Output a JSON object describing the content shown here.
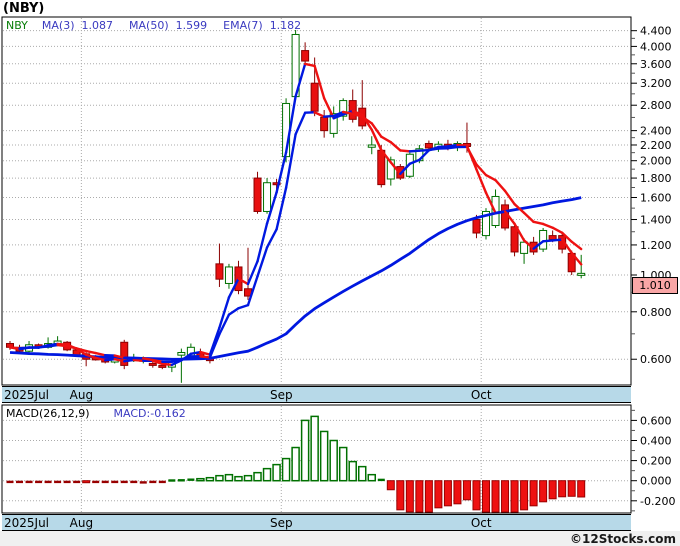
{
  "title": "(NBY)",
  "legend": {
    "symbol": "NBY",
    "items": [
      {
        "label": "MA(3)",
        "value": "1.087"
      },
      {
        "label": "MA(50)",
        "value": "1.599"
      },
      {
        "label": "EMA(7)",
        "value": "1.182"
      }
    ]
  },
  "macd_legend": {
    "label": "MACD(26,12,9)",
    "value": "MACD:-0.162"
  },
  "price_tag": "1.010",
  "footer": "©12Stocks.com",
  "colors": {
    "up": "#007000",
    "down": "#e81010",
    "down_dark": "#8b0000",
    "ma_blue": "#0018e0",
    "ma_red": "#ee1111",
    "ma50_blue": "#0018e0",
    "macd_neg_fill": "#ee1111",
    "macd_neg_stroke": "#990000",
    "grid": "#ababab",
    "band": "#b7d9e8",
    "price_tag_bg": "#f9a6a6"
  },
  "chart_data": {
    "type": "candlestick+macd",
    "symbol": "NBY",
    "scale": "log",
    "title": "(NBY)",
    "price_axis": {
      "majors": [
        4.4,
        4.0,
        3.6,
        3.2,
        2.8,
        2.4,
        2.2,
        2.0,
        1.8,
        1.6,
        1.4,
        1.2,
        1.0,
        0.8,
        0.6
      ],
      "minors": [
        4.2,
        3.8,
        3.4,
        3.0,
        2.6,
        2.3,
        2.1,
        1.9,
        1.7,
        1.5,
        1.3,
        1.1,
        0.9,
        0.7
      ],
      "last_price": 1.01
    },
    "macd_axis": {
      "majors": [
        0.6,
        0.4,
        0.2,
        0.0,
        -0.2
      ],
      "minors": [
        0.7,
        0.5,
        0.3,
        0.1,
        -0.1,
        -0.3
      ],
      "last_value": -0.162
    },
    "months": [
      {
        "label": "2025Jul",
        "index": 0
      },
      {
        "label": "Aug",
        "index": 8
      },
      {
        "label": "Sep",
        "index": 29
      },
      {
        "label": "Oct",
        "index": 50
      }
    ],
    "indicators": {
      "ma3": "MA(3) 1.087 blue/red by direction",
      "ma50": "MA(50) 1.599 blue",
      "ema7": "EMA(7) 1.182 blue/red by direction"
    },
    "bars_ohlc": [
      [
        0.66,
        0.67,
        0.635,
        0.645
      ],
      [
        0.645,
        0.655,
        0.625,
        0.63
      ],
      [
        0.63,
        0.67,
        0.625,
        0.655
      ],
      [
        0.655,
        0.66,
        0.64,
        0.645
      ],
      [
        0.645,
        0.685,
        0.64,
        0.66
      ],
      [
        0.66,
        0.69,
        0.65,
        0.67
      ],
      [
        0.665,
        0.67,
        0.63,
        0.635
      ],
      [
        0.635,
        0.64,
        0.61,
        0.615
      ],
      [
        0.62,
        0.625,
        0.575,
        0.6
      ],
      [
        0.605,
        0.615,
        0.595,
        0.6
      ],
      [
        0.605,
        0.61,
        0.585,
        0.59
      ],
      [
        0.59,
        0.615,
        0.585,
        0.61
      ],
      [
        0.665,
        0.675,
        0.565,
        0.578
      ],
      [
        0.595,
        0.62,
        0.59,
        0.605
      ],
      [
        0.595,
        0.61,
        0.585,
        0.6
      ],
      [
        0.585,
        0.6,
        0.57,
        0.578
      ],
      [
        0.578,
        0.59,
        0.565,
        0.572
      ],
      [
        0.572,
        0.6,
        0.555,
        0.59
      ],
      [
        0.615,
        0.64,
        0.52,
        0.625
      ],
      [
        0.61,
        0.66,
        0.6,
        0.645
      ],
      [
        0.625,
        0.64,
        0.6,
        0.61
      ],
      [
        0.605,
        0.615,
        0.585,
        0.595
      ],
      [
        1.07,
        1.21,
        0.93,
        0.975
      ],
      [
        0.95,
        1.07,
        0.92,
        1.05
      ],
      [
        1.05,
        1.09,
        0.89,
        0.91
      ],
      [
        0.92,
        1.18,
        0.86,
        0.88
      ],
      [
        1.8,
        1.87,
        1.45,
        1.47
      ],
      [
        1.47,
        1.8,
        1.45,
        1.75
      ],
      [
        1.75,
        1.79,
        1.68,
        1.73
      ],
      [
        2.05,
        2.92,
        1.98,
        2.83
      ],
      [
        2.95,
        4.42,
        2.9,
        4.3
      ],
      [
        3.9,
        4.1,
        3.55,
        3.66
      ],
      [
        3.2,
        3.74,
        2.62,
        2.7
      ],
      [
        2.6,
        2.72,
        2.3,
        2.4
      ],
      [
        2.36,
        2.78,
        2.3,
        2.66
      ],
      [
        2.62,
        2.92,
        2.55,
        2.88
      ],
      [
        2.88,
        3.08,
        2.52,
        2.57
      ],
      [
        2.75,
        3.26,
        2.42,
        2.47
      ],
      [
        2.17,
        2.32,
        2.08,
        2.2
      ],
      [
        2.13,
        2.2,
        1.7,
        1.73
      ],
      [
        1.79,
        2.05,
        1.72,
        2.01
      ],
      [
        1.93,
        1.96,
        1.78,
        1.8
      ],
      [
        1.82,
        2.1,
        1.8,
        2.08
      ],
      [
        2.0,
        2.2,
        1.97,
        2.15
      ],
      [
        2.22,
        2.26,
        2.12,
        2.16
      ],
      [
        2.16,
        2.25,
        2.11,
        2.21
      ],
      [
        2.21,
        2.27,
        2.13,
        2.17
      ],
      [
        2.17,
        2.25,
        2.12,
        2.22
      ],
      [
        2.22,
        2.52,
        2.1,
        2.18
      ],
      [
        1.4,
        1.44,
        1.25,
        1.29
      ],
      [
        1.27,
        1.5,
        1.24,
        1.47
      ],
      [
        1.35,
        1.68,
        1.33,
        1.61
      ],
      [
        1.53,
        1.58,
        1.31,
        1.33
      ],
      [
        1.34,
        1.36,
        1.12,
        1.15
      ],
      [
        1.14,
        1.25,
        1.07,
        1.22
      ],
      [
        1.22,
        1.26,
        1.13,
        1.15
      ],
      [
        1.17,
        1.33,
        1.15,
        1.31
      ],
      [
        1.27,
        1.31,
        1.22,
        1.24
      ],
      [
        1.27,
        1.3,
        1.14,
        1.17
      ],
      [
        1.14,
        1.16,
        1.0,
        1.02
      ],
      [
        1.0,
        1.13,
        0.98,
        1.01
      ]
    ],
    "ma50_values": [
      0.625,
      0.623,
      0.621,
      0.62,
      0.618,
      0.617,
      0.615,
      0.613,
      0.611,
      0.609,
      0.607,
      0.606,
      0.605,
      0.604,
      0.603,
      0.602,
      0.601,
      0.6,
      0.6,
      0.601,
      0.602,
      0.603,
      0.61,
      0.617,
      0.624,
      0.63,
      0.645,
      0.662,
      0.678,
      0.7,
      0.74,
      0.78,
      0.815,
      0.845,
      0.875,
      0.905,
      0.935,
      0.965,
      0.995,
      1.025,
      1.06,
      1.1,
      1.14,
      1.19,
      1.24,
      1.285,
      1.325,
      1.36,
      1.39,
      1.415,
      1.435,
      1.455,
      1.47,
      1.485,
      1.5,
      1.515,
      1.53,
      1.55,
      1.565,
      1.58,
      1.599
    ],
    "macd_histogram": [
      -0.01,
      -0.01,
      -0.01,
      -0.01,
      -0.01,
      -0.01,
      -0.01,
      -0.01,
      -0.02,
      -0.01,
      -0.01,
      -0.01,
      -0.01,
      -0.01,
      -0.015,
      -0.01,
      -0.01,
      0.004,
      0.006,
      0.012,
      0.02,
      0.03,
      0.05,
      0.06,
      0.04,
      0.05,
      0.08,
      0.12,
      0.16,
      0.22,
      0.33,
      0.6,
      0.64,
      0.49,
      0.4,
      0.33,
      0.19,
      0.14,
      0.06,
      0.01,
      -0.09,
      -0.29,
      -0.31,
      -0.34,
      -0.32,
      -0.27,
      -0.25,
      -0.23,
      -0.19,
      -0.29,
      -0.33,
      -0.34,
      -0.33,
      -0.34,
      -0.29,
      -0.25,
      -0.21,
      -0.18,
      -0.16,
      -0.155,
      -0.162
    ]
  }
}
